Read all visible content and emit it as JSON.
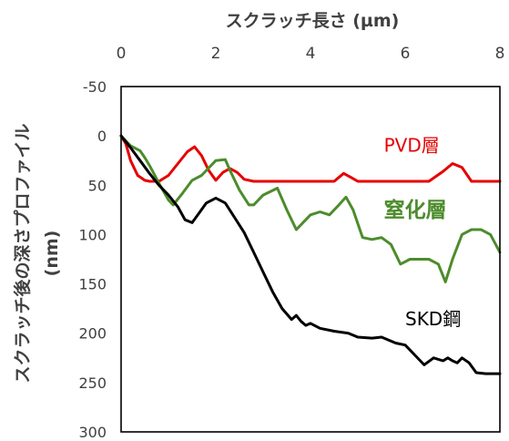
{
  "chart_data": {
    "type": "line",
    "title": "",
    "xlabel": "スクラッチ長さ (µm)",
    "ylabel_main": "スクラッチ後の深さプロファイル",
    "ylabel_unit": "(nm)",
    "xlim": [
      0,
      8
    ],
    "ylim": [
      -50,
      300
    ],
    "y_inverted": true,
    "x_axis_position": "top",
    "grid": false,
    "x_ticks": [
      0,
      2,
      4,
      6,
      8
    ],
    "x_tick_labels": [
      "0",
      "2",
      "4",
      "6",
      "8"
    ],
    "y_ticks": [
      -50,
      0,
      50,
      100,
      150,
      200,
      250,
      300
    ],
    "y_tick_labels": [
      "-50",
      "0",
      "50",
      "100",
      "150",
      "200",
      "250",
      "300"
    ],
    "series": [
      {
        "name": "PVD層",
        "color": "#e60000",
        "x": [
          0,
          0.1,
          0.2,
          0.35,
          0.5,
          0.6,
          0.8,
          1.0,
          1.2,
          1.4,
          1.55,
          1.7,
          1.85,
          2.0,
          2.15,
          2.3,
          2.45,
          2.6,
          2.8,
          3.0,
          3.5,
          4.0,
          4.5,
          4.7,
          4.85,
          5.0,
          5.5,
          6.0,
          6.5,
          6.8,
          7.0,
          7.2,
          7.4,
          7.6,
          8.0
        ],
        "y": [
          0,
          8,
          25,
          40,
          45,
          46,
          46,
          40,
          28,
          16,
          11,
          20,
          35,
          45,
          37,
          33,
          37,
          44,
          46,
          46,
          46,
          46,
          46,
          38,
          42,
          46,
          46,
          46,
          46,
          36,
          28,
          32,
          46,
          46,
          46
        ]
      },
      {
        "name": "窒化層",
        "color": "#4c8c2c",
        "x": [
          0,
          0.2,
          0.4,
          0.5,
          0.6,
          0.8,
          1.0,
          1.1,
          1.3,
          1.5,
          1.7,
          1.9,
          2.0,
          2.2,
          2.3,
          2.5,
          2.7,
          2.8,
          3.0,
          3.3,
          3.5,
          3.7,
          3.9,
          4.0,
          4.2,
          4.4,
          4.6,
          4.75,
          4.9,
          5.1,
          5.3,
          5.5,
          5.7,
          5.9,
          6.1,
          6.3,
          6.5,
          6.7,
          6.85,
          7.0,
          7.2,
          7.4,
          7.6,
          7.8,
          8.0
        ],
        "y": [
          0,
          10,
          15,
          22,
          30,
          48,
          65,
          70,
          58,
          45,
          40,
          30,
          25,
          24,
          35,
          55,
          70,
          70,
          60,
          53,
          75,
          95,
          85,
          80,
          77,
          80,
          70,
          62,
          75,
          103,
          105,
          103,
          110,
          130,
          125,
          125,
          125,
          130,
          148,
          125,
          100,
          95,
          95,
          100,
          118
        ]
      },
      {
        "name": "SKD鋼",
        "color": "#000000",
        "x": [
          0,
          0.2,
          0.4,
          0.6,
          0.8,
          1.0,
          1.2,
          1.35,
          1.5,
          1.65,
          1.8,
          2.0,
          2.2,
          2.4,
          2.6,
          2.8,
          3.0,
          3.2,
          3.4,
          3.6,
          3.7,
          3.8,
          3.9,
          4.0,
          4.2,
          4.5,
          4.8,
          5.0,
          5.3,
          5.5,
          5.8,
          6.0,
          6.2,
          6.4,
          6.6,
          6.8,
          6.9,
          7.0,
          7.1,
          7.2,
          7.35,
          7.5,
          7.7,
          8.0
        ],
        "y": [
          0,
          12,
          25,
          38,
          50,
          60,
          72,
          85,
          88,
          78,
          68,
          63,
          68,
          83,
          98,
          118,
          138,
          158,
          175,
          186,
          182,
          188,
          192,
          190,
          195,
          198,
          200,
          204,
          205,
          204,
          210,
          212,
          222,
          232,
          225,
          228,
          225,
          228,
          230,
          225,
          230,
          240,
          241,
          241
        ]
      }
    ],
    "annotations": [
      {
        "text": "PVD層",
        "x": 5.55,
        "y": 16,
        "color": "#e60000",
        "size": 20,
        "bold": false
      },
      {
        "text": "窒化層",
        "x": 5.55,
        "y": 82,
        "color": "#4c8c2c",
        "size": 23,
        "bold": true
      },
      {
        "text": "SKD鋼",
        "x": 6.0,
        "y": 192,
        "color": "#000000",
        "size": 20,
        "bold": false
      }
    ]
  }
}
